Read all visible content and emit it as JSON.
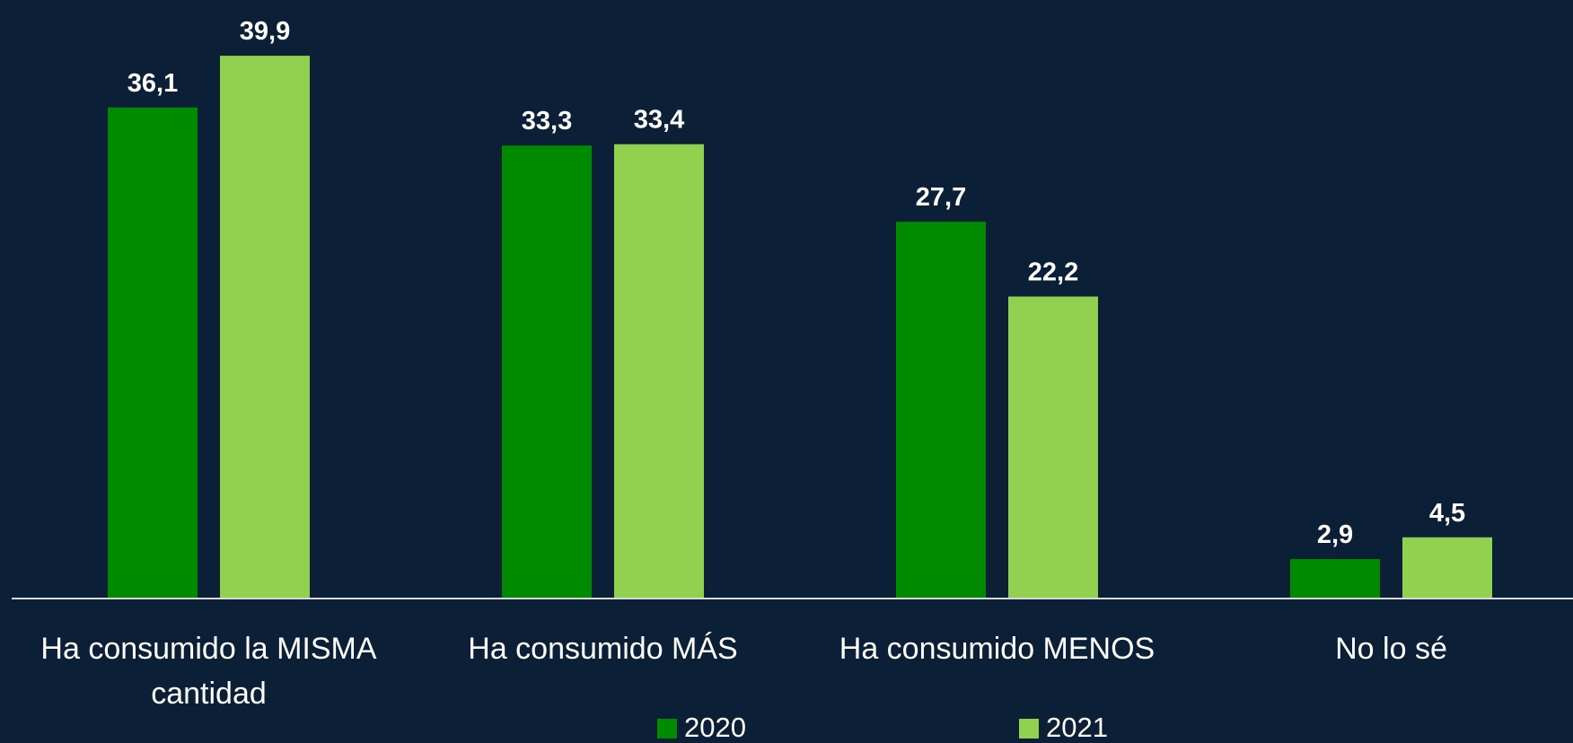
{
  "chart_data": {
    "type": "bar",
    "categories": [
      "Ha consumido la MISMA cantidad",
      "Ha consumido MÁS",
      "Ha consumido MENOS",
      "No lo sé"
    ],
    "series": [
      {
        "name": "2020",
        "color": "#008a00",
        "values": [
          36.1,
          33.3,
          27.7,
          2.9
        ],
        "value_labels": [
          "36,1",
          "33,3",
          "27,7",
          "2,9"
        ]
      },
      {
        "name": "2021",
        "color": "#92d050",
        "values": [
          39.9,
          33.4,
          22.2,
          4.5
        ],
        "value_labels": [
          "39,9",
          "33,4",
          "22,2",
          "4,5"
        ]
      }
    ],
    "ylim": [
      0,
      44
    ],
    "legend": "bottom"
  }
}
